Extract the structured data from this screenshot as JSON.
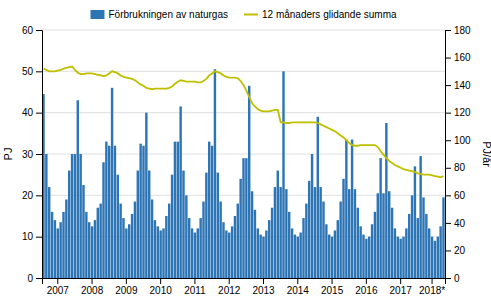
{
  "chart_data": {
    "type": "bar",
    "categories": [
      null,
      null,
      null,
      null,
      null,
      "2007",
      null,
      null,
      null,
      null,
      null,
      null,
      null,
      null,
      null,
      null,
      null,
      "2008",
      null,
      null,
      null,
      null,
      null,
      null,
      null,
      null,
      null,
      null,
      null,
      "2009",
      null,
      null,
      null,
      null,
      null,
      null,
      null,
      null,
      null,
      null,
      null,
      "2010",
      null,
      null,
      null,
      null,
      null,
      null,
      null,
      null,
      null,
      null,
      null,
      "2011",
      null,
      null,
      null,
      null,
      null,
      null,
      null,
      null,
      null,
      null,
      null,
      "2012",
      null,
      null,
      null,
      null,
      null,
      null,
      null,
      null,
      null,
      null,
      null,
      "2013",
      null,
      null,
      null,
      null,
      null,
      null,
      null,
      null,
      null,
      null,
      null,
      "2014",
      null,
      null,
      null,
      null,
      null,
      null,
      null,
      null,
      null,
      null,
      null,
      "2015",
      null,
      null,
      null,
      null,
      null,
      null,
      null,
      null,
      null,
      null,
      null,
      "2016",
      null,
      null,
      null,
      null,
      null,
      null,
      null,
      null,
      null,
      null,
      null,
      "2017",
      null,
      null,
      null,
      null,
      null,
      null,
      null,
      null,
      null,
      null,
      "2018*",
      null,
      null,
      null,
      null
    ],
    "series": [
      {
        "name": "Förbrukningen av naturgas",
        "type": "bar",
        "color": "#2e75b6",
        "values": [
          44.5,
          30.0,
          22.0,
          16.0,
          14.0,
          12.0,
          13.5,
          16.0,
          19.0,
          26.0,
          30.0,
          30.0,
          43.0,
          30.0,
          22.5,
          16.0,
          13.5,
          12.5,
          14.0,
          17.0,
          18.0,
          28.0,
          33.0,
          32.0,
          46.0,
          32.0,
          25.0,
          18.0,
          14.5,
          12.0,
          13.0,
          15.5,
          18.5,
          26.0,
          32.5,
          32.0,
          40.0,
          26.0,
          19.0,
          14.0,
          12.5,
          11.5,
          12.0,
          15.0,
          18.0,
          25.0,
          33.0,
          33.0,
          41.5,
          26.0,
          20.0,
          14.5,
          12.0,
          11.0,
          12.0,
          14.5,
          18.5,
          25.5,
          33.0,
          32.0,
          50.5,
          25.5,
          18.5,
          13.5,
          11.5,
          11.0,
          12.5,
          15.0,
          18.0,
          24.0,
          29.0,
          29.0,
          46.5,
          21.0,
          16.5,
          12.0,
          10.5,
          10.0,
          11.5,
          14.0,
          17.0,
          22.0,
          26.0,
          22.0,
          50.0,
          21.5,
          16.0,
          12.0,
          10.5,
          10.0,
          11.0,
          14.5,
          18.0,
          23.5,
          30.0,
          22.0,
          39.0,
          22.0,
          18.5,
          13.0,
          10.5,
          10.0,
          11.5,
          14.0,
          18.5,
          24.0,
          33.5,
          21.5,
          33.5,
          21.5,
          17.0,
          12.5,
          10.5,
          9.5,
          10.0,
          13.0,
          16.0,
          20.5,
          29.0,
          20.5,
          37.5,
          21.0,
          17.0,
          12.0,
          10.0,
          9.5,
          10.0,
          12.0,
          15.5,
          20.0,
          27.0,
          14.5,
          29.5,
          19.5,
          15.5,
          12.0,
          10.0,
          9.0,
          10.0,
          12.5,
          19.5
        ]
      },
      {
        "name": "12 månaders glidande summa",
        "type": "line",
        "color": "#bfbf00",
        "axis": "y2",
        "values": [
          152.0,
          151.0,
          150.0,
          150.0,
          150.0,
          150.5,
          151.0,
          152.0,
          152.5,
          153.0,
          153.5,
          151.0,
          149.0,
          148.0,
          148.0,
          148.5,
          148.5,
          148.5,
          148.0,
          147.5,
          147.0,
          146.5,
          147.0,
          148.5,
          150.0,
          149.5,
          148.5,
          147.0,
          146.0,
          145.5,
          145.0,
          144.5,
          143.5,
          142.0,
          140.5,
          139.5,
          138.0,
          137.5,
          137.0,
          137.5,
          137.5,
          137.5,
          137.5,
          137.5,
          138.0,
          139.0,
          141.0,
          142.5,
          143.5,
          143.0,
          142.5,
          142.5,
          142.5,
          142.5,
          142.0,
          142.0,
          143.0,
          144.5,
          147.0,
          148.5,
          150.0,
          149.5,
          148.5,
          147.0,
          146.0,
          145.5,
          145.5,
          145.5,
          145.0,
          143.0,
          140.0,
          136.0,
          131.5,
          127.0,
          124.5,
          122.5,
          121.5,
          121.0,
          121.0,
          121.0,
          121.5,
          122.0,
          122.0,
          113.0,
          113.0,
          112.5,
          112.5,
          113.0,
          113.0,
          113.0,
          113.0,
          113.0,
          113.0,
          113.0,
          113.0,
          113.0,
          112.5,
          111.5,
          110.5,
          109.5,
          108.5,
          107.5,
          106.5,
          105.0,
          103.5,
          102.0,
          100.0,
          98.0,
          96.5,
          96.0,
          96.0,
          96.5,
          96.5,
          96.5,
          96.5,
          96.5,
          96.5,
          95.0,
          92.0,
          89.5,
          87.0,
          85.0,
          83.5,
          82.0,
          81.0,
          80.0,
          79.0,
          78.5,
          78.0,
          77.5,
          77.0,
          76.0,
          75.5,
          75.0,
          75.0,
          75.0,
          74.5,
          74.0,
          73.5,
          73.0,
          74.0
        ]
      }
    ],
    "ylabel": "PJ",
    "y2label": "PJ/år",
    "ylim": [
      0,
      60
    ],
    "yticks": [
      0,
      10,
      20,
      30,
      40,
      50,
      60
    ],
    "y2lim": [
      0,
      180
    ],
    "y2ticks": [
      0,
      20,
      40,
      60,
      80,
      100,
      120,
      140,
      160,
      180
    ],
    "grid": true,
    "legend": "top"
  }
}
